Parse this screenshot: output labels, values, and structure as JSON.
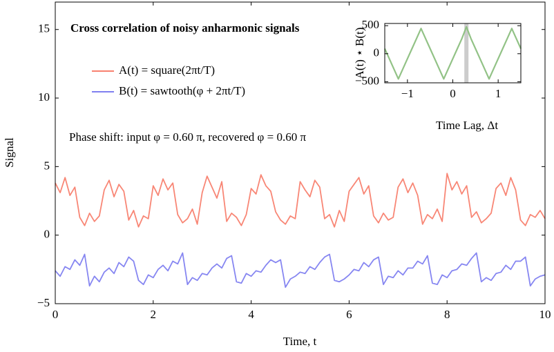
{
  "chart_data": [
    {
      "type": "line",
      "title": "Cross correlation of noisy anharmonic signals",
      "annotation": "Phase shift: input φ = 0.60 π, recovered φ = 0.60 π",
      "xlabel": "Time, t",
      "ylabel": "Signal",
      "xlim": [
        0,
        10
      ],
      "ylim": [
        -5,
        17
      ],
      "xticks": [
        0,
        2,
        4,
        6,
        8,
        10
      ],
      "yticks": [
        {
          "value": -5,
          "label": "−5"
        },
        0,
        5,
        10,
        15
      ],
      "x": [
        0,
        0.1,
        0.2,
        0.3,
        0.4,
        0.5,
        0.6,
        0.7,
        0.8,
        0.9,
        1,
        1.1,
        1.2,
        1.3,
        1.4,
        1.5,
        1.6,
        1.7,
        1.8,
        1.9,
        2,
        2.1,
        2.2,
        2.3,
        2.4,
        2.5,
        2.6,
        2.7,
        2.8,
        2.9,
        3,
        3.1,
        3.2,
        3.3,
        3.4,
        3.5,
        3.6,
        3.7,
        3.8,
        3.9,
        4,
        4.1,
        4.2,
        4.3,
        4.4,
        4.5,
        4.6,
        4.7,
        4.8,
        4.9,
        5,
        5.1,
        5.2,
        5.3,
        5.4,
        5.5,
        5.6,
        5.7,
        5.8,
        5.9,
        6,
        6.1,
        6.2,
        6.3,
        6.4,
        6.5,
        6.6,
        6.7,
        6.8,
        6.9,
        7,
        7.1,
        7.2,
        7.3,
        7.4,
        7.5,
        7.6,
        7.7,
        7.8,
        7.9,
        8,
        8.1,
        8.2,
        8.3,
        8.4,
        8.5,
        8.6,
        8.7,
        8.8,
        8.9,
        9,
        9.1,
        9.2,
        9.3,
        9.4,
        9.5,
        9.6,
        9.7,
        9.8,
        9.9,
        10
      ],
      "series": [
        {
          "name": "A(t) = square(2πt/T)",
          "color": "#f8806e",
          "values": [
            3.8,
            3.1,
            4.2,
            2.9,
            3.5,
            1.3,
            0.7,
            1.6,
            1.0,
            1.4,
            3.3,
            4.0,
            2.8,
            3.7,
            3.2,
            1.1,
            1.8,
            0.6,
            1.4,
            1.2,
            3.6,
            2.9,
            4.1,
            3.3,
            3.8,
            1.5,
            0.9,
            1.2,
            1.9,
            0.8,
            3.1,
            4.3,
            3.5,
            2.7,
            3.9,
            1.0,
            1.6,
            1.3,
            0.7,
            1.5,
            3.4,
            3.0,
            4.4,
            3.6,
            3.2,
            1.7,
            1.1,
            0.8,
            1.4,
            1.2,
            3.9,
            3.3,
            2.8,
            4.0,
            3.5,
            1.2,
            1.5,
            0.6,
            1.8,
            1.0,
            3.2,
            3.7,
            4.2,
            3.0,
            3.6,
            1.4,
            0.9,
            1.6,
            1.1,
            1.3,
            3.5,
            4.1,
            3.1,
            3.8,
            2.9,
            0.8,
            1.5,
            1.2,
            1.9,
            1.0,
            4.5,
            3.3,
            3.9,
            3.0,
            3.6,
            1.3,
            1.7,
            0.9,
            1.2,
            1.6,
            3.4,
            3.8,
            2.9,
            4.2,
            3.3,
            1.1,
            0.7,
            1.5,
            1.3,
            1.8,
            1.2
          ]
        },
        {
          "name": "B(t) = sawtooth(φ + 2πt/T)",
          "color": "#7f7ff0",
          "values": [
            -2.6,
            -3.0,
            -2.3,
            -2.5,
            -1.8,
            -2.2,
            -1.4,
            -3.7,
            -3.0,
            -3.4,
            -2.7,
            -2.4,
            -2.8,
            -2.0,
            -2.3,
            -1.6,
            -1.9,
            -3.3,
            -3.6,
            -2.9,
            -3.1,
            -2.5,
            -2.2,
            -2.6,
            -1.9,
            -2.1,
            -1.3,
            -3.6,
            -3.1,
            -3.3,
            -2.8,
            -2.9,
            -2.4,
            -2.1,
            -2.4,
            -1.7,
            -1.5,
            -3.4,
            -3.5,
            -2.8,
            -3.0,
            -2.6,
            -2.7,
            -2.2,
            -1.8,
            -2.0,
            -1.8,
            -3.8,
            -3.2,
            -3.0,
            -2.7,
            -2.8,
            -2.3,
            -2.5,
            -2.0,
            -1.6,
            -1.4,
            -3.3,
            -3.4,
            -3.2,
            -2.9,
            -2.5,
            -2.6,
            -2.0,
            -2.3,
            -1.8,
            -1.6,
            -3.6,
            -3.0,
            -3.1,
            -2.6,
            -2.9,
            -2.4,
            -2.4,
            -1.9,
            -2.1,
            -1.5,
            -3.5,
            -3.6,
            -2.9,
            -3.1,
            -2.6,
            -2.5,
            -2.1,
            -2.2,
            -1.7,
            -1.3,
            -3.4,
            -3.1,
            -3.3,
            -2.8,
            -2.7,
            -2.2,
            -2.5,
            -1.9,
            -1.9,
            -1.6,
            -3.7,
            -3.2,
            -3.0,
            -2.9
          ]
        }
      ]
    },
    {
      "type": "line",
      "xlabel": "Time Lag, Δt",
      "ylabel": "A(t) ⋆ B(t)",
      "xlim": [
        -1.5,
        1.5
      ],
      "ylim": [
        -520,
        540
      ],
      "xticks": [
        {
          "value": -1,
          "label": "−1"
        },
        0,
        1
      ],
      "yticks": [
        {
          "value": -500,
          "label": "−500"
        },
        0,
        500
      ],
      "highlight_x": 0.3,
      "highlight_color": "#cccccc",
      "x": [
        -1.5,
        -1.4,
        -1.3,
        -1.2,
        -1.1,
        -1.0,
        -0.9,
        -0.8,
        -0.7,
        -0.6,
        -0.5,
        -0.4,
        -0.3,
        -0.2,
        -0.1,
        0,
        0.1,
        0.2,
        0.3,
        0.4,
        0.5,
        0.6,
        0.7,
        0.8,
        0.9,
        1.0,
        1.1,
        1.2,
        1.3,
        1.4,
        1.5
      ],
      "series": [
        {
          "color": "#8cbf80",
          "values": [
            90,
            -90,
            -270,
            -450,
            -270,
            -90,
            90,
            270,
            450,
            270,
            90,
            -90,
            -270,
            -450,
            -270,
            -90,
            90,
            270,
            480,
            270,
            90,
            -90,
            -270,
            -450,
            -270,
            -90,
            90,
            270,
            450,
            270,
            90
          ]
        }
      ]
    }
  ]
}
